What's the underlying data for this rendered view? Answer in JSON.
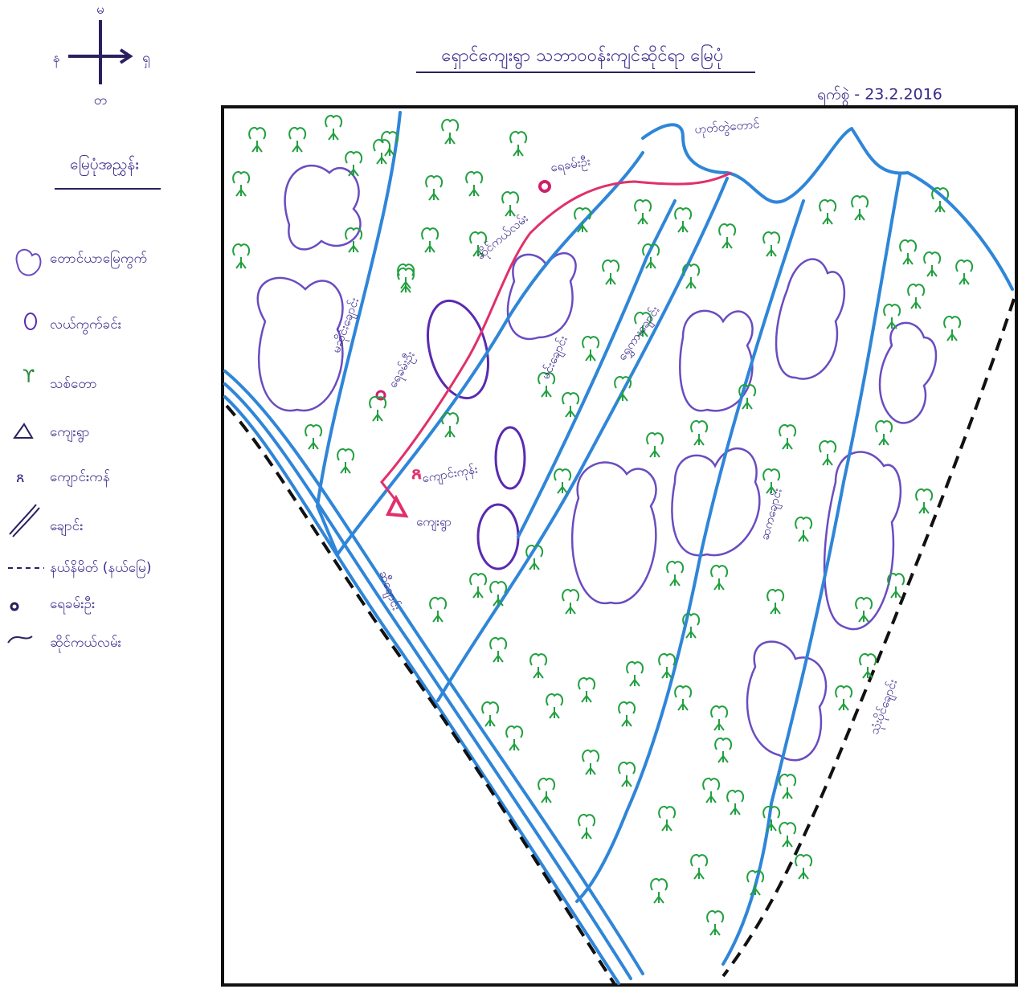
{
  "header": {
    "title": "ရှောင်ကျေးရွာ သဘာဝဝန်းကျင်ဆိုင်ရာ မြေပုံ",
    "date": "ရက်စွဲ - 23.2.2016"
  },
  "compass": {
    "north": "မ",
    "west": "န",
    "east": "ရှ",
    "south": "တ"
  },
  "legend": {
    "title": "မြေပုံအညွှန်း",
    "items": [
      {
        "label": "တောင်ယာမြေကွက်"
      },
      {
        "label": "လယ်ကွက်ခင်း"
      },
      {
        "label": "သစ်တော"
      },
      {
        "label": "ကျေးရွာ"
      },
      {
        "label": "ကျောင်းကန်"
      },
      {
        "label": "ချောင်း"
      },
      {
        "label": "နယ်နိမိတ် (နယ်မြေ)"
      },
      {
        "label": "ရေခမ်းဦး"
      },
      {
        "label": "ဆိုင်ကယ်လမ်း"
      }
    ]
  },
  "map": {
    "labels": [
      "ဟုတ်တွဲတောင်",
      "ရေခမ်းဦး",
      "ဆိုင်ကယ်လမ်း",
      "မဆိုင်းချောင်း",
      "ရေခမ်းဦး",
      "မင်းချောင်း",
      "ရွှေကားချောင်း",
      "ကျောင်းကုန်း",
      "ကျေးရွာ",
      "ဆီချောင်း",
      "ဆကချောင်း",
      "သုံးပိုင်ချောင်း"
    ]
  }
}
